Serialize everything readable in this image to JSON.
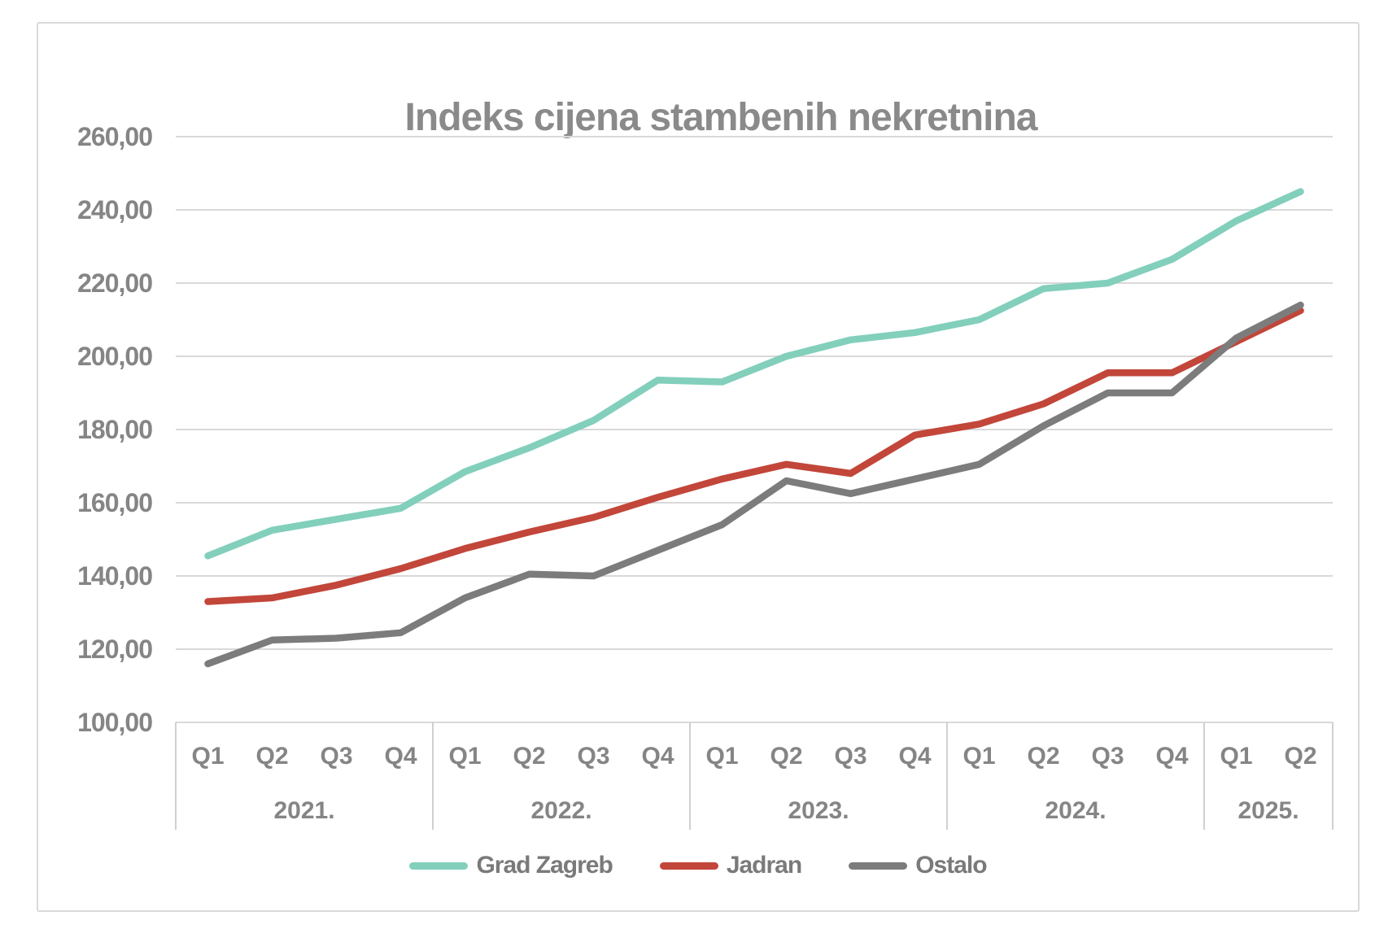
{
  "title": "Indeks cijena stambenih nekretnina",
  "chart_data": {
    "type": "line",
    "title": "Indeks cijena stambenih nekretnina",
    "quarter_labels": [
      "Q1",
      "Q2",
      "Q3",
      "Q4",
      "Q1",
      "Q2",
      "Q3",
      "Q4",
      "Q1",
      "Q2",
      "Q3",
      "Q4",
      "Q1",
      "Q2",
      "Q3",
      "Q4",
      "Q1",
      "Q2"
    ],
    "year_groups": [
      {
        "label": "2021.",
        "count": 4
      },
      {
        "label": "2022.",
        "count": 4
      },
      {
        "label": "2023.",
        "count": 4
      },
      {
        "label": "2024.",
        "count": 4
      },
      {
        "label": "2025.",
        "count": 2
      }
    ],
    "series": [
      {
        "name": "Grad Zagreb",
        "color": "#82CFBC",
        "values": [
          145.5,
          152.5,
          155.5,
          158.5,
          168.5,
          175,
          182.5,
          193.5,
          193,
          200,
          204.5,
          206.5,
          210,
          218.5,
          220,
          226.5,
          237,
          245
        ]
      },
      {
        "name": "Jadran",
        "color": "#C2463A",
        "values": [
          133,
          134,
          137.5,
          142,
          147.5,
          152,
          156,
          161.5,
          166.5,
          170.5,
          168,
          178.5,
          181.5,
          187,
          195.5,
          195.5,
          204,
          212.5
        ]
      },
      {
        "name": "Ostalo",
        "color": "#7C7C7C",
        "values": [
          116,
          122.5,
          123,
          124.5,
          134,
          140.5,
          140,
          147,
          154,
          166,
          162.5,
          166.5,
          170.5,
          181,
          190,
          190,
          205,
          214
        ]
      }
    ],
    "ylim": [
      100,
      260
    ],
    "ytick_step": 20,
    "ytick_labels": [
      "260,00",
      "240,00",
      "220,00",
      "200,00",
      "180,00",
      "160,00",
      "140,00",
      "120,00",
      "100,00"
    ],
    "grid": true,
    "legend_position": "bottom"
  },
  "colors": {
    "grid": "#D9D9D9",
    "axis": "#D0D0D0",
    "label_text": "#858585",
    "title_text": "#8A8A8A",
    "background": "#FFFFFF",
    "border": "#D9D9D9"
  }
}
